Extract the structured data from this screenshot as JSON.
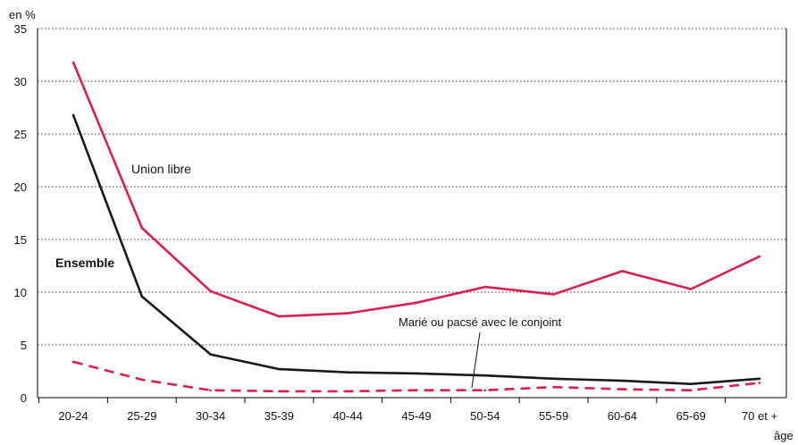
{
  "chart_data": {
    "type": "line",
    "ylabel": "en %",
    "xlabel": "âge",
    "ylim": [
      0,
      35
    ],
    "yticks": [
      "0",
      "5",
      "10",
      "15",
      "20",
      "25",
      "30",
      "35"
    ],
    "categories": [
      "20-24",
      "25-29",
      "30-34",
      "35-39",
      "40-44",
      "45-49",
      "50-54",
      "55-59",
      "60-64",
      "65-69",
      "70 et +"
    ],
    "grid": true,
    "series": [
      {
        "name": "Union libre",
        "color": "#d6204e",
        "style": "solid",
        "values": [
          31.8,
          16.1,
          10.1,
          7.7,
          8.0,
          9.0,
          10.5,
          9.8,
          12.0,
          10.3,
          13.4
        ]
      },
      {
        "name": "Ensemble",
        "color": "#1a1a1a",
        "style": "solid",
        "values": [
          26.8,
          9.6,
          4.1,
          2.7,
          2.4,
          2.3,
          2.1,
          1.8,
          1.6,
          1.3,
          1.8
        ]
      },
      {
        "name": "Marié ou pacsé avec le conjoint",
        "color": "#d6204e",
        "style": "dashed",
        "values": [
          3.4,
          1.7,
          0.7,
          0.6,
          0.6,
          0.7,
          0.7,
          1.0,
          0.8,
          0.7,
          1.4
        ]
      }
    ]
  }
}
